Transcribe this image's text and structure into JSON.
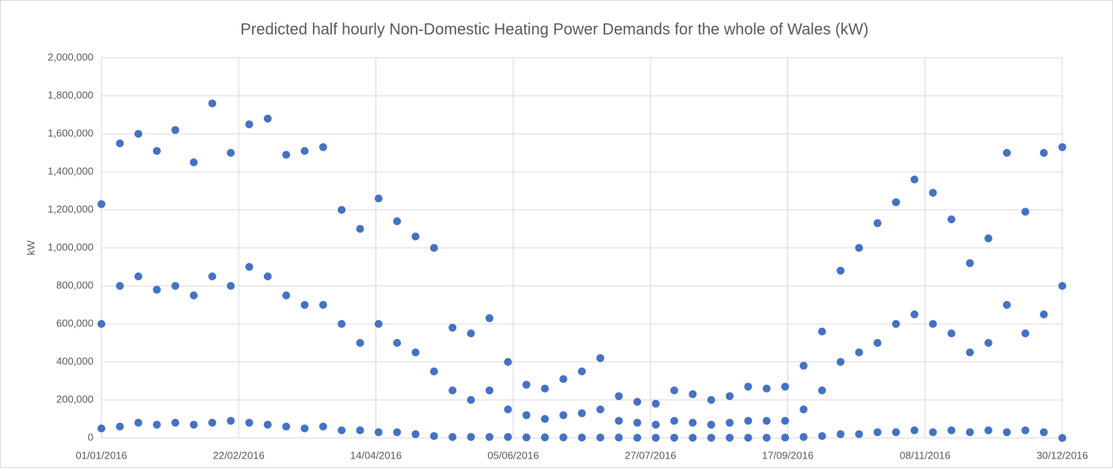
{
  "chart_data": {
    "type": "scatter",
    "title": "Predicted half hourly Non-Domestic Heating Power Demands for the whole of Wales (kW)",
    "y_label": "kW",
    "color": "#4472c4",
    "grid": true,
    "xlim": [
      "01/01/2016",
      "30/12/2016"
    ],
    "xticks": [
      "01/01/2016",
      "22/02/2016",
      "14/04/2016",
      "05/06/2016",
      "27/07/2016",
      "17/09/2016",
      "08/11/2016",
      "30/12/2016"
    ],
    "ylim": [
      0,
      2000000
    ],
    "yticks": [
      0,
      {
        "value": 200000,
        "label": "200,000"
      },
      {
        "value": 400000,
        "label": "400,000"
      },
      {
        "value": 600000,
        "label": "600,000"
      },
      {
        "value": 800000,
        "label": "800,000"
      },
      {
        "value": 1000000,
        "label": "1,000,000"
      },
      {
        "value": 1200000,
        "label": "1,200,000"
      },
      {
        "value": 1400000,
        "label": "1,400,000"
      },
      {
        "value": 1600000,
        "label": "1,600,000"
      },
      {
        "value": 1800000,
        "label": "1,800,000"
      },
      {
        "value": 2000000,
        "label": "2,000,000"
      }
    ],
    "x": [
      "01/01/2016",
      "08/01/2016",
      "15/01/2016",
      "22/01/2016",
      "29/01/2016",
      "05/02/2016",
      "12/02/2016",
      "19/02/2016",
      "26/02/2016",
      "04/03/2016",
      "11/03/2016",
      "18/03/2016",
      "25/03/2016",
      "01/04/2016",
      "08/04/2016",
      "15/04/2016",
      "22/04/2016",
      "29/04/2016",
      "06/05/2016",
      "13/05/2016",
      "20/05/2016",
      "27/05/2016",
      "03/06/2016",
      "10/06/2016",
      "17/06/2016",
      "24/06/2016",
      "01/07/2016",
      "08/07/2016",
      "15/07/2016",
      "22/07/2016",
      "29/07/2016",
      "05/08/2016",
      "12/08/2016",
      "19/08/2016",
      "26/08/2016",
      "02/09/2016",
      "09/09/2016",
      "16/09/2016",
      "23/09/2016",
      "30/09/2016",
      "07/10/2016",
      "14/10/2016",
      "21/10/2016",
      "28/10/2016",
      "04/11/2016",
      "11/11/2016",
      "18/11/2016",
      "25/11/2016",
      "02/12/2016",
      "09/12/2016",
      "16/12/2016",
      "23/12/2016",
      "30/12/2016"
    ],
    "series": [
      {
        "values": [
          1230000,
          1550000,
          1600000,
          1510000,
          1620000,
          1450000,
          1760000,
          1500000,
          1650000,
          1680000,
          1490000,
          1510000,
          1530000,
          1200000,
          1100000,
          1260000,
          1140000,
          1060000,
          1000000,
          580000,
          550000,
          630000,
          400000,
          280000,
          260000,
          310000,
          350000,
          420000,
          220000,
          190000,
          180000,
          250000,
          230000,
          200000,
          220000,
          270000,
          260000,
          270000,
          380000,
          560000,
          880000,
          1000000,
          1130000,
          1240000,
          1360000,
          1290000,
          1150000,
          920000,
          1050000,
          1500000,
          1190000,
          1500000,
          1530000
        ]
      },
      {
        "values": [
          600000,
          800000,
          850000,
          780000,
          800000,
          750000,
          850000,
          800000,
          900000,
          850000,
          750000,
          700000,
          700000,
          600000,
          500000,
          600000,
          500000,
          450000,
          350000,
          250000,
          200000,
          250000,
          150000,
          120000,
          100000,
          120000,
          130000,
          150000,
          90000,
          80000,
          70000,
          90000,
          80000,
          70000,
          80000,
          90000,
          90000,
          90000,
          150000,
          250000,
          400000,
          450000,
          500000,
          600000,
          650000,
          600000,
          550000,
          450000,
          500000,
          700000,
          550000,
          650000,
          800000
        ]
      },
      {
        "values": [
          50000,
          60000,
          80000,
          70000,
          80000,
          70000,
          80000,
          90000,
          80000,
          70000,
          60000,
          50000,
          60000,
          40000,
          40000,
          30000,
          30000,
          20000,
          10000,
          5000,
          5000,
          5000,
          5000,
          3000,
          3000,
          3000,
          2000,
          2000,
          2000,
          1000,
          1000,
          1000,
          1000,
          1000,
          1000,
          1000,
          1000,
          2000,
          5000,
          10000,
          20000,
          20000,
          30000,
          30000,
          40000,
          30000,
          40000,
          30000,
          40000,
          30000,
          40000,
          30000,
          0
        ]
      }
    ]
  }
}
